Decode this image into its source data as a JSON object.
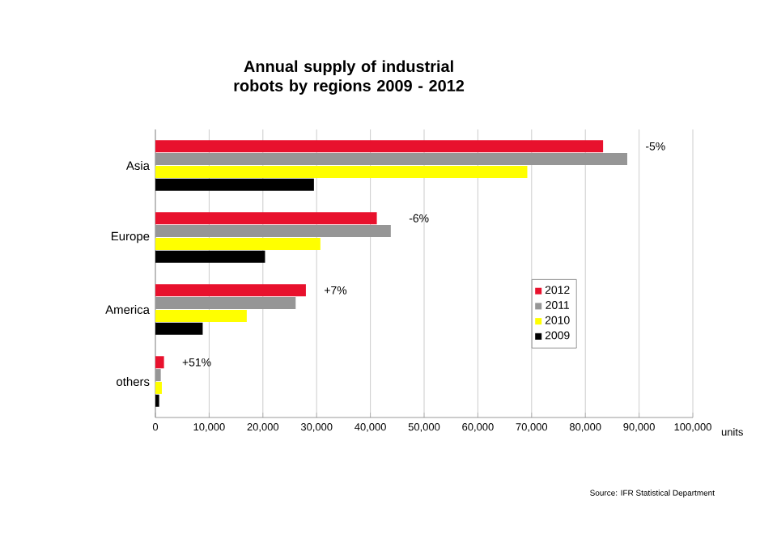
{
  "chart_data": {
    "type": "bar",
    "orientation": "horizontal",
    "title": "Annual supply of industrial robots by regions 2009 - 2012",
    "xlabel": "units",
    "categories": [
      "Asia",
      "Europe",
      "America",
      "others"
    ],
    "series": [
      {
        "name": "2012",
        "color": "#e8112d",
        "values": [
          83300,
          41200,
          28000,
          1600
        ]
      },
      {
        "name": "2011",
        "color": "#969696",
        "values": [
          87800,
          43800,
          26100,
          1000
        ]
      },
      {
        "name": "2010",
        "color": "#ffff00",
        "values": [
          69200,
          30700,
          17000,
          1200
        ]
      },
      {
        "name": "2009",
        "color": "#000000",
        "values": [
          29500,
          20400,
          8800,
          700
        ]
      }
    ],
    "xlim": [
      0,
      100000
    ],
    "xticks": [
      0,
      {
        "value": 10000,
        "label": "10,000"
      },
      {
        "value": 20000,
        "label": "20,000"
      },
      {
        "value": 30000,
        "label": "30,000"
      },
      {
        "value": 40000,
        "label": "40,000"
      },
      {
        "value": 50000,
        "label": "50,000"
      },
      {
        "value": 60000,
        "label": "60,000"
      },
      {
        "value": 70000,
        "label": "70,000"
      },
      {
        "value": 80000,
        "label": "80,000"
      },
      {
        "value": 90000,
        "label": "90,000"
      },
      {
        "value": 100000,
        "label": "100,000"
      }
    ],
    "grid": "x",
    "legend": "right",
    "annotations": [
      "-5%",
      "-6%",
      "+7%",
      "+51%",
      "Source: IFR Statistical Department"
    ]
  }
}
